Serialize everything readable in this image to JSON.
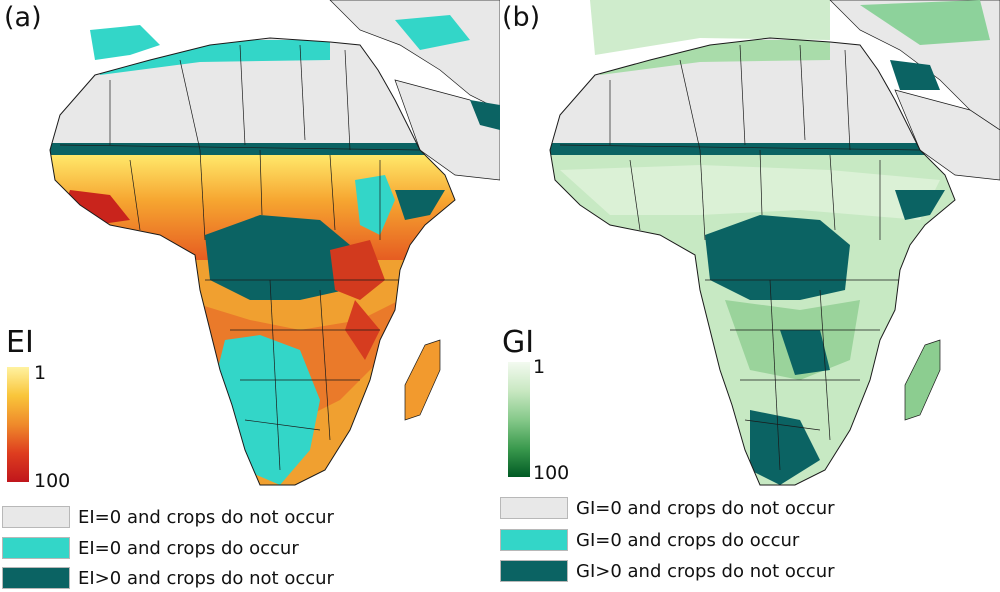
{
  "panels": [
    {
      "id": "a",
      "label": "(a)",
      "scale_title": "EI",
      "scale_top": "1",
      "scale_bottom": "100",
      "gradient": [
        "#fff2a0",
        "#f9c53a",
        "#ef8a2b",
        "#de3d1f",
        "#c0161c"
      ],
      "legend": [
        {
          "text": "EI=0 and crops do not occur",
          "color": "#e8e8e8"
        },
        {
          "text": "EI=0 and crops do occur",
          "color": "#33d6c8"
        },
        {
          "text": "EI>0 and crops do not occur",
          "color": "#0b6363"
        }
      ]
    },
    {
      "id": "b",
      "label": "(b)",
      "scale_title": "GI",
      "scale_top": "1",
      "scale_bottom": "100",
      "gradient": [
        "#f3faf0",
        "#c9e8c2",
        "#86c98a",
        "#3b9a4e",
        "#005a24"
      ],
      "legend": [
        {
          "text": "GI=0 and crops do not occur",
          "color": "#e8e8e8"
        },
        {
          "text": "GI=0 and crops do occur",
          "color": "#33d6c8"
        },
        {
          "text": "GI>0 and crops do not occur",
          "color": "#0b6363"
        }
      ]
    }
  ],
  "colors": {
    "sea": "#ffffff",
    "desert": "#e8e8e8",
    "border": "#1a1a1a",
    "dark_teal": "#0b6363",
    "cyan": "#33d6c8"
  }
}
